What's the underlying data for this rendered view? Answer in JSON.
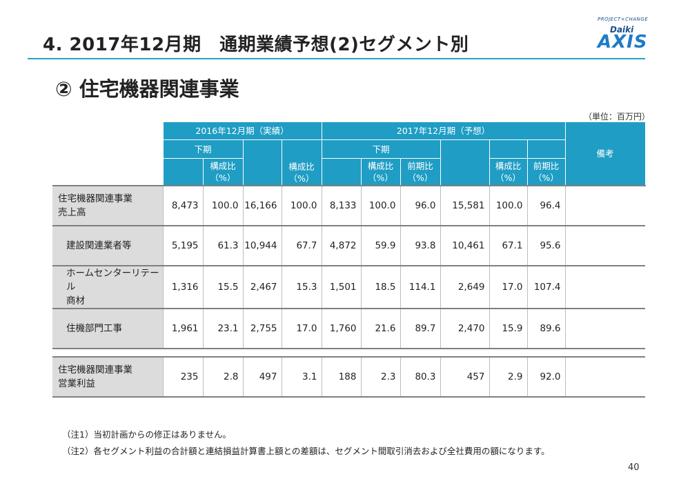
{
  "header": {
    "title": "4. 2017年12月期　通期業績予想(2)セグメント別",
    "logo_tagline": "PROJECT×CHANGE",
    "logo_daiki": "Daiki",
    "logo_axis": "AXIS"
  },
  "subtitle": "② 住宅機器関連事業",
  "unit": "（単位：百万円）",
  "table": {
    "h_2016": "2016年12月期（実績）",
    "h_2017": "2017年12月期（予想）",
    "h_shimoki_2016": "下期",
    "h_shimoki_2017": "下期",
    "h_biko": "備考",
    "h_kousei_1": "構成比\n（%）",
    "h_kousei_2": "構成比\n（%）",
    "h_kousei_3": "構成比\n（%）",
    "h_zenki_1": "前期比\n（%）",
    "h_kousei_4": "構成比\n（%）",
    "h_zenki_2": "前期比\n（%）",
    "rows": [
      {
        "label": "住宅機器関連事業\n売上高",
        "values": [
          "8,473",
          "100.0",
          "16,166",
          "100.0",
          "8,133",
          "100.0",
          "96.0",
          "15,581",
          "100.0",
          "96.4"
        ],
        "note": ""
      },
      {
        "label": "建設関連業者等",
        "values": [
          "5,195",
          "61.3",
          "10,944",
          "67.7",
          "4,872",
          "59.9",
          "93.8",
          "10,461",
          "67.1",
          "95.6"
        ],
        "note": ""
      },
      {
        "label": "ホームセンターリテール\n商材",
        "values": [
          "1,316",
          "15.5",
          "2,467",
          "15.3",
          "1,501",
          "18.5",
          "114.1",
          "2,649",
          "17.0",
          "107.4"
        ],
        "note": ""
      },
      {
        "label": "住機部門工事",
        "values": [
          "1,961",
          "23.1",
          "2,755",
          "17.0",
          "1,760",
          "21.6",
          "89.7",
          "2,470",
          "15.9",
          "89.6"
        ],
        "note": ""
      }
    ],
    "profit_row": {
      "label": "住宅機器関連事業\n営業利益",
      "values": [
        "235",
        "2.8",
        "497",
        "3.1",
        "188",
        "2.3",
        "80.3",
        "457",
        "2.9",
        "92.0"
      ],
      "note": ""
    }
  },
  "notes": {
    "n1": "（注1）当初計画からの修正はありません。",
    "n2": "（注2）各セグメント利益の合計額と連結損益計算書上額との差額は、セグメント間取引消去および全社費用の額になります。"
  },
  "page_number": "40",
  "colors": {
    "header_bg": "#1f9dc4",
    "rule": "#2a9fc3",
    "label_bg": "#dcdcdc"
  }
}
